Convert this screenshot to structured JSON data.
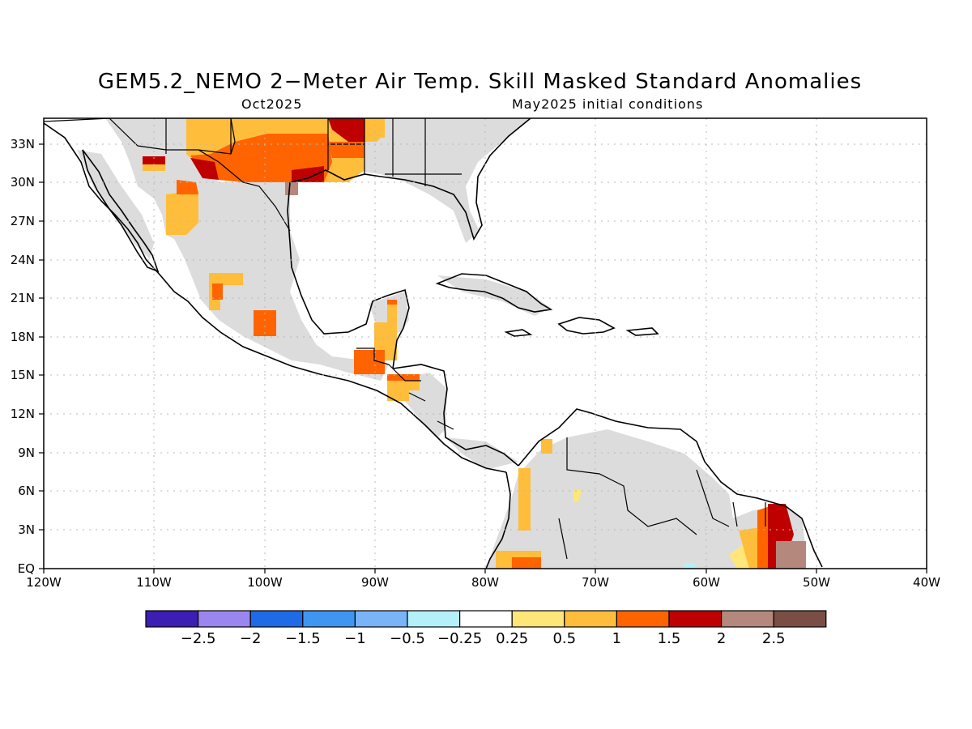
{
  "header": {
    "title": "GEM5.2_NEMO 2−Meter Air Temp. Skill Masked Standard Anomalies",
    "valid_month": "Oct2025",
    "initial_conditions": "May2025 initial conditions"
  },
  "map": {
    "lat_labels": [
      "33N",
      "30N",
      "27N",
      "24N",
      "21N",
      "18N",
      "15N",
      "12N",
      "9N",
      "6N",
      "3N",
      "EQ"
    ],
    "lon_labels": [
      "120W",
      "110W",
      "100W",
      "90W",
      "80W",
      "70W",
      "60W",
      "50W",
      "40W"
    ],
    "lon_range": [
      -120,
      -40
    ],
    "lat_range": [
      0,
      35
    ],
    "grid_style": "dotted",
    "mask_color": "#dcdcdc",
    "coastline_color": "#000000"
  },
  "colorbar": {
    "colors": [
      "#3c1eb4",
      "#9b86f0",
      "#1f6ae6",
      "#3f96f2",
      "#78b4f7",
      "#b4f0fa",
      "#ffffff",
      "#ffe678",
      "#ffbd3c",
      "#ff6400",
      "#be0000",
      "#b4887c",
      "#7a4e44"
    ],
    "labels": [
      "−2.5",
      "−2",
      "−1.5",
      "−1",
      "−0.5",
      "−0.25",
      "0.25",
      "0.5",
      "1",
      "1.5",
      "2",
      "2.5"
    ]
  }
}
